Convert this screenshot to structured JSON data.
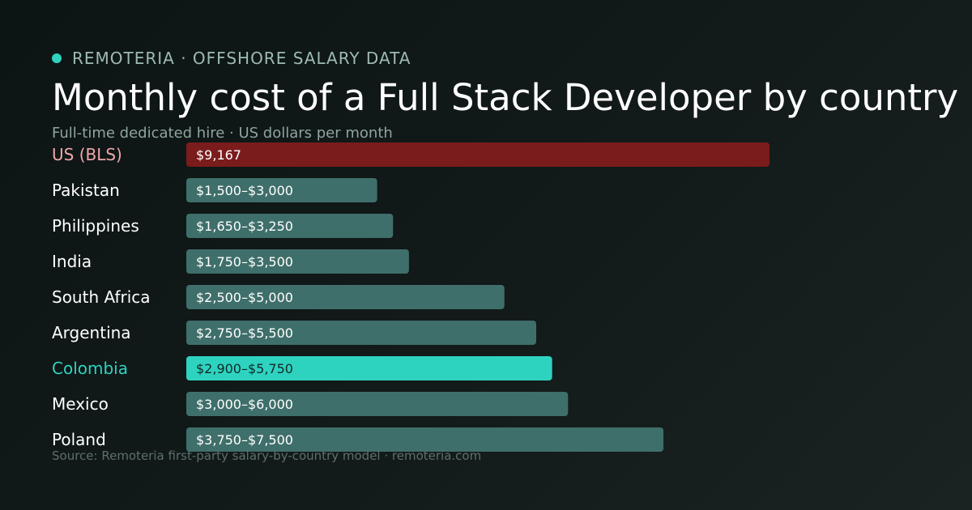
{
  "header": {
    "brand": "REMOTERIA · OFFSHORE SALARY DATA",
    "title": "Monthly cost of a Full Stack Developer by country",
    "subtitle": "Full-time dedicated hire · US dollars per month"
  },
  "footer": {
    "source": "Source: Remoteria first-party salary-by-country model · remoteria.com"
  },
  "colors": {
    "accent": "#2ed3c0",
    "benchmark_bar": "#7b1c1c",
    "benchmark_label": "#f0a8a8",
    "default_bar": "#3f6f6a",
    "default_label": "#ffffff",
    "default_value_text": "#ffffff",
    "highlight_value_text": "#0f2a27"
  },
  "chart_data": {
    "type": "bar",
    "orientation": "horizontal",
    "unit": "US dollars per month",
    "xlim": [
      0,
      11000
    ],
    "grid": false,
    "legend": "none",
    "categories": [
      "US (BLS)",
      "Pakistan",
      "Philippines",
      "India",
      "South Africa",
      "Argentina",
      "Colombia",
      "Mexico",
      "Poland"
    ],
    "bars": [
      {
        "category": "US (BLS)",
        "low": null,
        "high": 9167,
        "value_label": "$9,167",
        "style": "benchmark"
      },
      {
        "category": "Pakistan",
        "low": 1500,
        "high": 3000,
        "value_label": "$1,500–$3,000",
        "style": "default"
      },
      {
        "category": "Philippines",
        "low": 1650,
        "high": 3250,
        "value_label": "$1,650–$3,250",
        "style": "default"
      },
      {
        "category": "India",
        "low": 1750,
        "high": 3500,
        "value_label": "$1,750–$3,500",
        "style": "default"
      },
      {
        "category": "South Africa",
        "low": 2500,
        "high": 5000,
        "value_label": "$2,500–$5,000",
        "style": "default"
      },
      {
        "category": "Argentina",
        "low": 2750,
        "high": 5500,
        "value_label": "$2,750–$5,500",
        "style": "default"
      },
      {
        "category": "Colombia",
        "low": 2900,
        "high": 5750,
        "value_label": "$2,900–$5,750",
        "style": "highlight"
      },
      {
        "category": "Mexico",
        "low": 3000,
        "high": 6000,
        "value_label": "$3,000–$6,000",
        "style": "default"
      },
      {
        "category": "Poland",
        "low": 3750,
        "high": 7500,
        "value_label": "$3,750–$7,500",
        "style": "default"
      }
    ]
  }
}
